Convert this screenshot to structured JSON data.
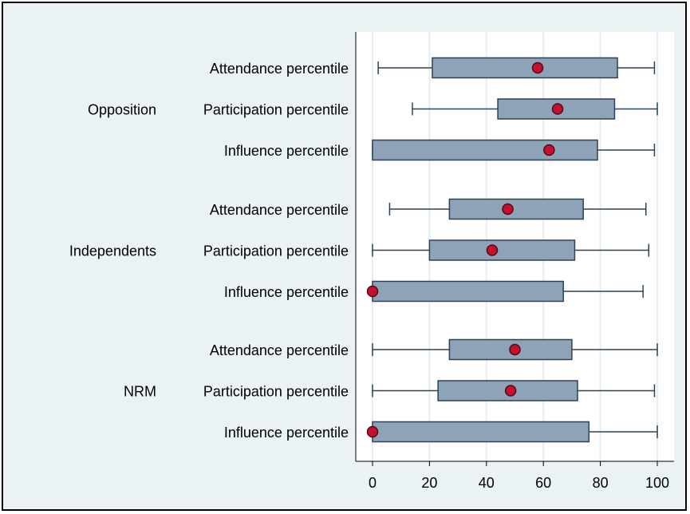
{
  "chart_data": {
    "type": "boxplot",
    "orientation": "horizontal",
    "xlim": [
      0,
      100
    ],
    "x_ticks": [
      "0",
      "20",
      "40",
      "60",
      "80",
      "100"
    ],
    "x_tick_values": [
      0,
      20,
      40,
      60,
      80,
      100
    ],
    "grid": true,
    "colors": {
      "background": "#eaf2f3",
      "plot_background": "#ffffff",
      "gridline": "#e4eef0",
      "box_fill": "#8ea2b8",
      "box_stroke": "#2d4256",
      "whisker": "#2d4256",
      "marker_fill": "#c8102e",
      "marker_stroke": "#4a0d14"
    },
    "groups": [
      {
        "name": "Opposition",
        "rows": [
          {
            "label": "Attendance percentile",
            "min": 2,
            "q1": 21,
            "q3": 86,
            "max": 99,
            "mean": 58
          },
          {
            "label": "Participation percentile",
            "min": 14,
            "q1": 44,
            "q3": 85,
            "max": 100,
            "mean": 65
          },
          {
            "label": "Influence percentile",
            "min": 0,
            "q1": 0,
            "q3": 79,
            "max": 99,
            "mean": 62
          }
        ]
      },
      {
        "name": "Independents",
        "rows": [
          {
            "label": "Attendance percentile",
            "min": 6,
            "q1": 27,
            "q3": 74,
            "max": 96,
            "mean": 47.5
          },
          {
            "label": "Participation percentile",
            "min": 0,
            "q1": 20,
            "q3": 71,
            "max": 97,
            "mean": 42
          },
          {
            "label": "Influence percentile",
            "min": 0,
            "q1": 0,
            "q3": 67,
            "max": 95,
            "mean": 0
          }
        ]
      },
      {
        "name": "NRM",
        "rows": [
          {
            "label": "Attendance percentile",
            "min": 0,
            "q1": 27,
            "q3": 70,
            "max": 100,
            "mean": 50
          },
          {
            "label": "Participation percentile",
            "min": 0,
            "q1": 23,
            "q3": 72,
            "max": 99,
            "mean": 48.5
          },
          {
            "label": "Influence percentile",
            "min": 0,
            "q1": 0,
            "q3": 76,
            "max": 100,
            "mean": 0
          }
        ]
      }
    ]
  }
}
